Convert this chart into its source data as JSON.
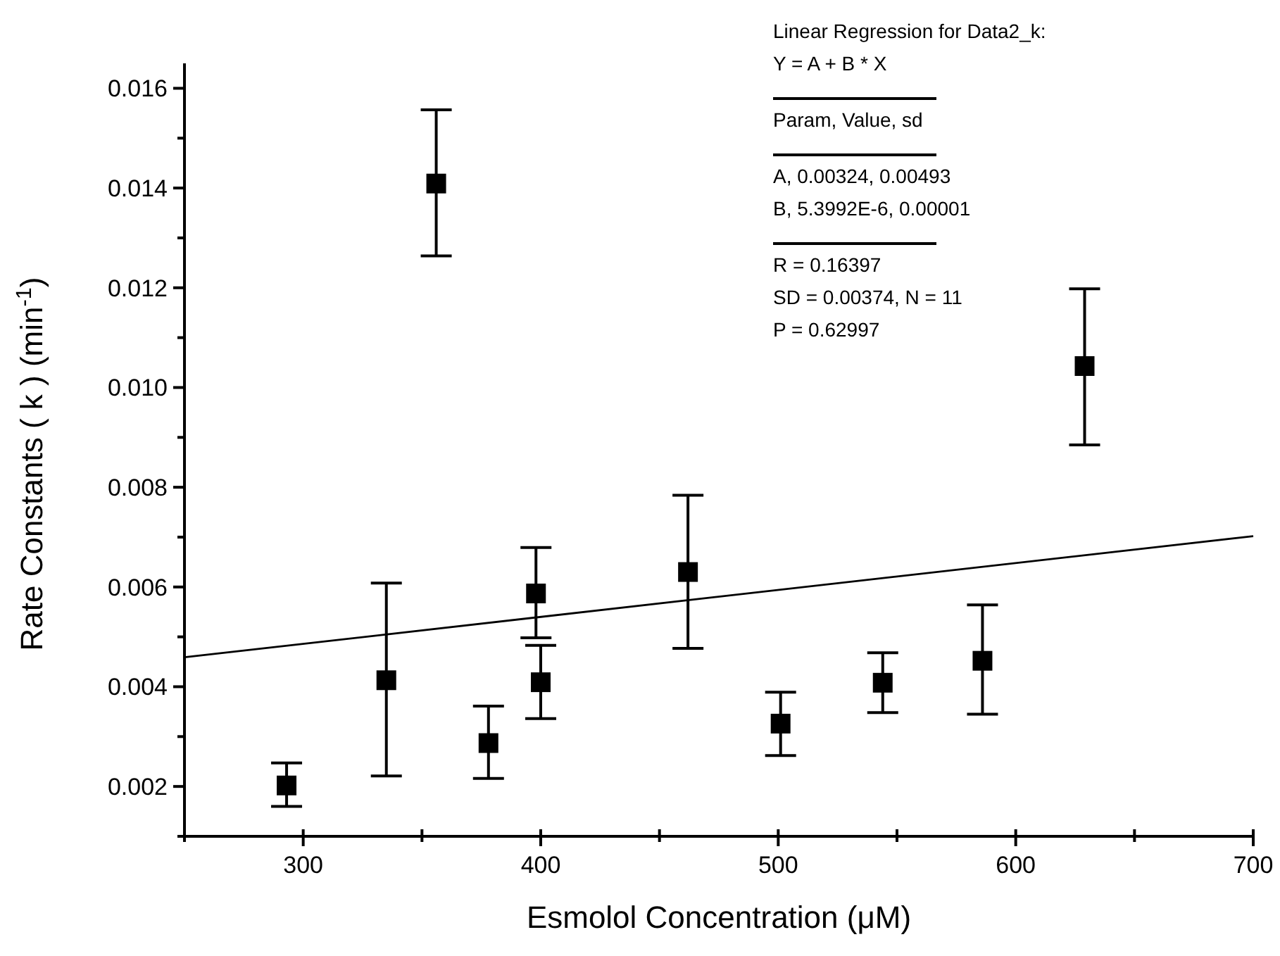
{
  "chart_data": {
    "type": "scatter",
    "xlabel": "Esmolol Concentration (μM)",
    "ylabel": "Rate Constants ( k ) (min$^{-1}$)",
    "xlim": [
      250,
      700
    ],
    "ylim": [
      0.001,
      0.0165
    ],
    "xticks": [
      {
        "value": 250,
        "label": null
      },
      300,
      {
        "value": 350,
        "label": null
      },
      400,
      {
        "value": 450,
        "label": null
      },
      500,
      {
        "value": 550,
        "label": null
      },
      600,
      {
        "value": 650,
        "label": null
      },
      700
    ],
    "yticks": [
      {
        "value": 0.001,
        "label": null
      },
      {
        "value": 0.002,
        "label": "0.002"
      },
      {
        "value": 0.003,
        "label": null
      },
      {
        "value": 0.004,
        "label": "0.004"
      },
      {
        "value": 0.005,
        "label": null
      },
      {
        "value": 0.006,
        "label": "0.006"
      },
      {
        "value": 0.007,
        "label": null
      },
      {
        "value": 0.008,
        "label": "0.008"
      },
      {
        "value": 0.009,
        "label": null
      },
      {
        "value": 0.01,
        "label": "0.010"
      },
      {
        "value": 0.011,
        "label": null
      },
      {
        "value": 0.012,
        "label": "0.012"
      },
      {
        "value": 0.013,
        "label": null
      },
      {
        "value": 0.014,
        "label": "0.014"
      },
      {
        "value": 0.015,
        "label": null
      },
      {
        "value": 0.016,
        "label": "0.016"
      }
    ],
    "grid": false,
    "marker": "square",
    "series": [
      {
        "color": "#000000",
        "x": [
          293,
          335,
          356,
          378,
          398,
          400,
          462,
          501,
          544,
          586,
          629
        ],
        "values": [
          0.00202,
          0.00413,
          0.01409,
          0.00287,
          0.00587,
          0.00409,
          0.0063,
          0.00326,
          0.00408,
          0.00452,
          0.01043
        ],
        "errors": [
          [
            0.0016,
            0.00247
          ],
          [
            0.00221,
            0.00608
          ],
          [
            0.01264,
            0.01557
          ],
          [
            0.00216,
            0.00361
          ],
          [
            0.00498,
            0.00679
          ],
          [
            0.00336,
            0.00483
          ],
          [
            0.00477,
            0.00784
          ],
          [
            0.00262,
            0.00389
          ],
          [
            0.00348,
            0.00468
          ],
          [
            0.00345,
            0.00564
          ],
          [
            0.00885,
            0.01198
          ]
        ]
      },
      {
        "type": "line",
        "color": "#000000",
        "x": [
          250,
          700
        ],
        "values": [
          0.00459,
          0.00702
        ],
        "marker": "none",
        "line_style": "solid"
      }
    ],
    "annotations": [
      "Linear Regression for Data2_k:",
      "Y = A + B * X",
      "Param, Value, sd",
      "A, 0.00324, 0.00493",
      "B, 5.3992E-6, 0.00001",
      "R  = 0.16397",
      "SD = 0.00374, N = 11",
      "P = 0.62997"
    ]
  }
}
